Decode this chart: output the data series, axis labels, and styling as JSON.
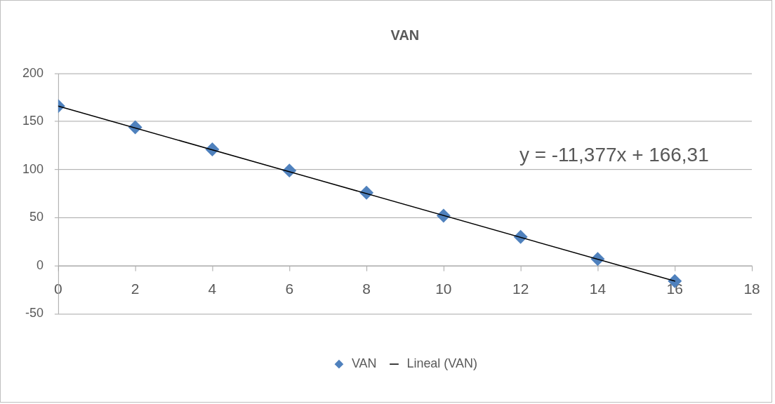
{
  "chart_data": {
    "type": "scatter",
    "title": "VAN",
    "series": [
      {
        "name": "VAN",
        "color": "#4f81bd",
        "marker": "diamond",
        "x": [
          0,
          2,
          4,
          6,
          8,
          10,
          12,
          14,
          16
        ],
        "values": [
          166,
          144,
          121,
          99,
          76,
          52,
          30,
          7,
          -16
        ]
      },
      {
        "name": "Lineal (VAN)",
        "type": "line",
        "color": "#000000",
        "marker": "none",
        "x": [
          0,
          16
        ],
        "values": [
          166,
          -16
        ]
      }
    ],
    "xlim": [
      0,
      18
    ],
    "xticks": [
      0,
      2,
      4,
      6,
      8,
      10,
      12,
      14,
      16,
      18
    ],
    "ylim": [
      -50,
      200
    ],
    "yticks": [
      -50,
      0,
      50,
      100,
      150,
      200
    ],
    "grid": "y",
    "legend": "bottom",
    "annotations": [
      "y = -11,377x + 166,31"
    ]
  }
}
